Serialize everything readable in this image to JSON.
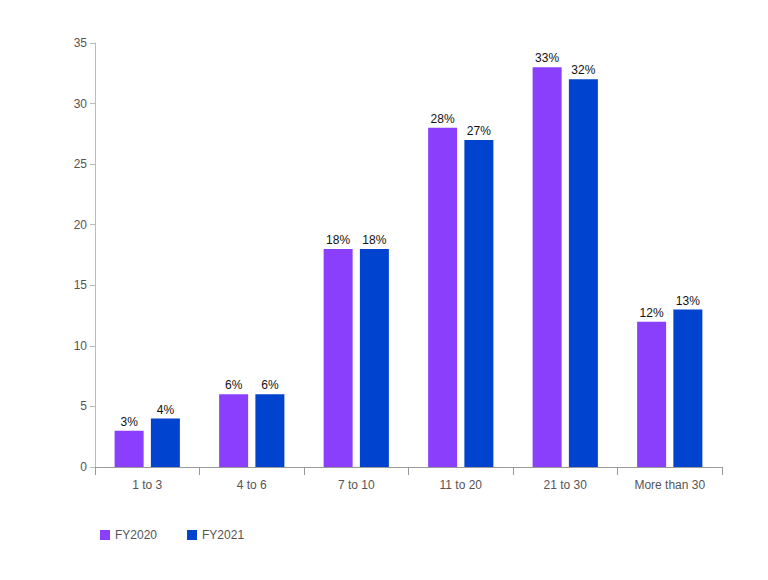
{
  "chart_data": {
    "type": "bar",
    "categories": [
      "1 to 3",
      "4 to 6",
      "7 to 10",
      "11 to 20",
      "21 to 30",
      "More than 30"
    ],
    "series": [
      {
        "name": "FY2020",
        "color": "#8a3ffc",
        "values": [
          3,
          6,
          18,
          28,
          33,
          12
        ],
        "value_labels": [
          "3%",
          "6%",
          "18%",
          "28%",
          "33%",
          "12%"
        ]
      },
      {
        "name": "FY2021",
        "color": "#0043ce",
        "values": [
          4,
          6,
          18,
          27,
          32,
          13
        ],
        "value_labels": [
          "4%",
          "6%",
          "18%",
          "27%",
          "32%",
          "13%"
        ]
      }
    ],
    "ylim": [
      0,
      35
    ],
    "yticks": [
      0,
      5,
      10,
      15,
      20,
      25,
      30,
      35
    ],
    "grid": false,
    "legend": "lower left",
    "data_labels": true
  }
}
